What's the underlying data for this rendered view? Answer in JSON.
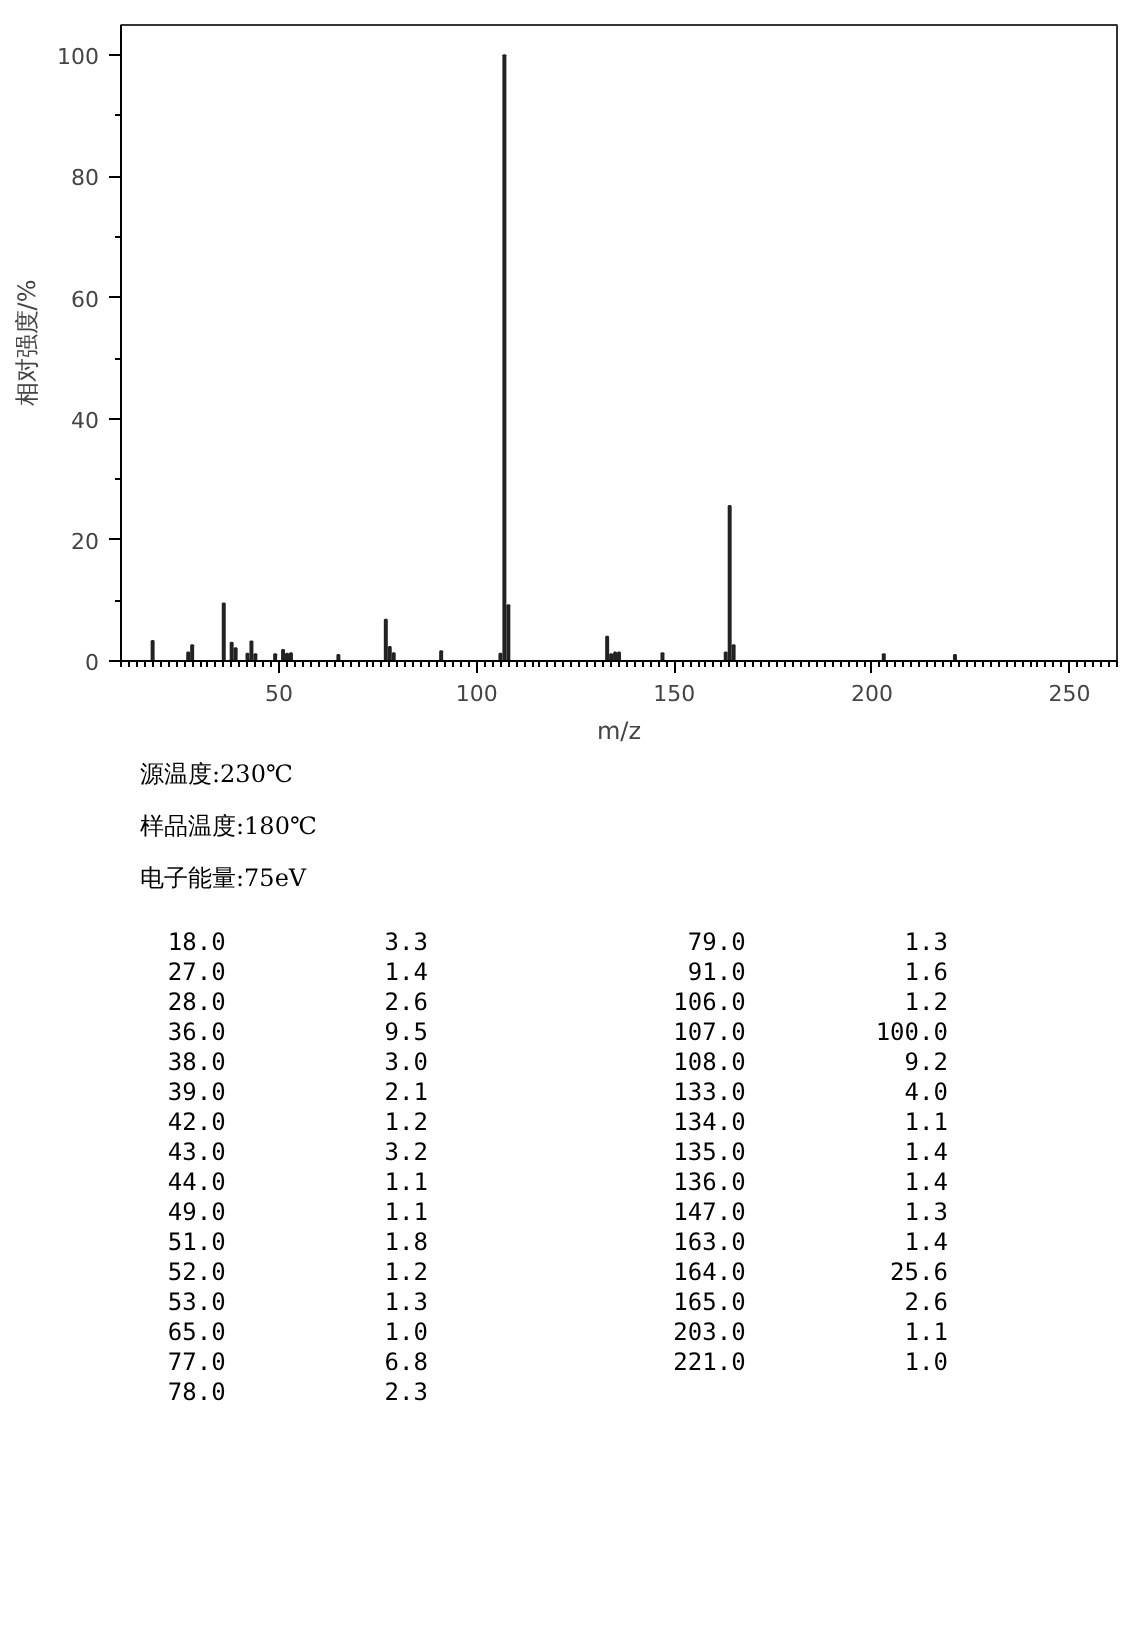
{
  "chart_data": {
    "type": "bar",
    "xlabel": "m/z",
    "ylabel": "相对强度/%",
    "x": [
      18,
      27,
      28,
      36,
      38,
      39,
      42,
      43,
      44,
      49,
      51,
      52,
      53,
      65,
      77,
      78,
      79,
      91,
      106,
      107,
      108,
      133,
      134,
      135,
      136,
      147,
      163,
      164,
      165,
      203,
      221
    ],
    "values": [
      3.3,
      1.4,
      2.6,
      9.5,
      3.0,
      2.1,
      1.2,
      3.2,
      1.1,
      1.1,
      1.8,
      1.2,
      1.3,
      1.0,
      6.8,
      2.3,
      1.3,
      1.6,
      1.2,
      100.0,
      9.2,
      4.0,
      1.1,
      1.4,
      1.4,
      1.3,
      1.4,
      25.6,
      2.6,
      1.1,
      1.0
    ],
    "color": "#222222",
    "xlim": [
      10,
      262
    ],
    "xticks": [
      50,
      100,
      150,
      200,
      250
    ],
    "ylim": [
      0,
      105
    ],
    "yticks": [
      0,
      20,
      40,
      60,
      80,
      100
    ],
    "grid": false,
    "annotations": [
      "源温度:230℃",
      "样品温度:180℃",
      "电子能量:75eV",
      "18.0 3.3",
      "27.0 1.4",
      "28.0 2.6",
      "36.0 9.5",
      "38.0 3.0",
      "39.0 2.1",
      "42.0 1.2",
      "43.0 3.2",
      "44.0 1.1",
      "49.0 1.1",
      "51.0 1.8",
      "52.0 1.2",
      "53.0 1.3",
      "65.0 1.0",
      "77.0 6.8",
      "78.0 2.3",
      "79.0 1.3",
      "91.0 1.6",
      "106.0 1.2",
      "107.0 100.0",
      "108.0 9.2",
      "133.0 4.0",
      "134.0 1.1",
      "135.0 1.4",
      "136.0 1.4",
      "147.0 1.3",
      "163.0 1.4",
      "164.0 25.6",
      "165.0 2.6",
      "203.0 1.1",
      "221.0 1.0"
    ]
  }
}
